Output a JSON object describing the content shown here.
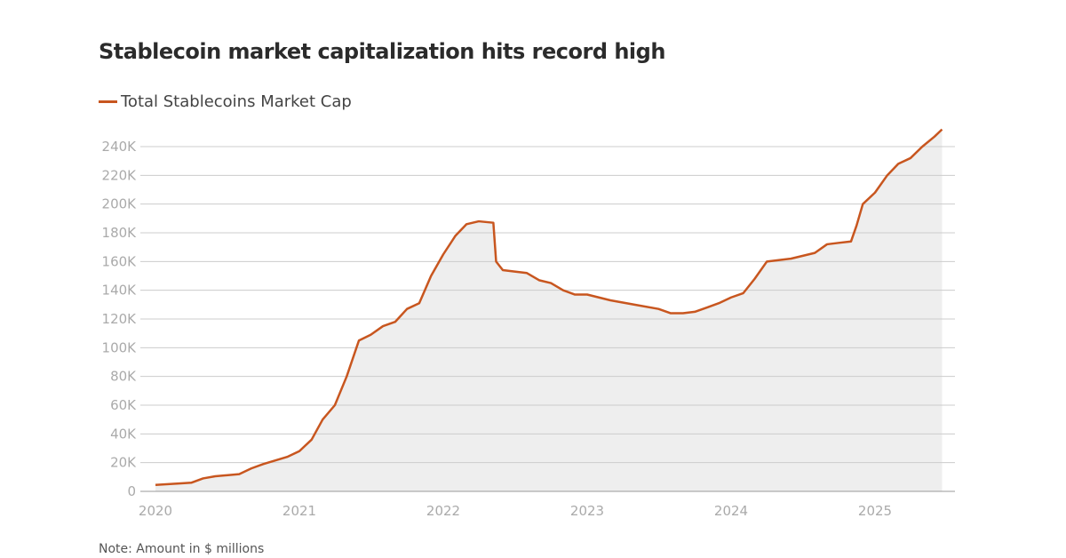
{
  "chart_data": {
    "type": "area",
    "title": "Stablecoin market capitalization hits record high",
    "note": "Note: Amount in $ millions",
    "xlabel": "",
    "ylabel": "",
    "ylim": [
      0,
      240000
    ],
    "y_ticks": [
      "0",
      "20K",
      "40K",
      "60K",
      "80K",
      "100K",
      "120K",
      "140K",
      "160K",
      "180K",
      "200K",
      "220K",
      "240K"
    ],
    "x_ticks": [
      "2020",
      "2021",
      "2022",
      "2023",
      "2024",
      "2025"
    ],
    "grid": true,
    "legend_placement": "top-left",
    "colors": {
      "line": "#c8561f",
      "fill": "#eeeeee",
      "grid": "#cccccc"
    },
    "series": [
      {
        "name": "Total Stablecoins Market Cap",
        "x": [
          "2020-01-01",
          "2020-03-01",
          "2020-04-01",
          "2020-05-01",
          "2020-06-01",
          "2020-08-01",
          "2020-09-01",
          "2020-10-01",
          "2020-12-01",
          "2021-01-01",
          "2021-02-01",
          "2021-03-01",
          "2021-04-01",
          "2021-05-01",
          "2021-06-01",
          "2021-07-01",
          "2021-08-01",
          "2021-09-01",
          "2021-10-01",
          "2021-11-01",
          "2021-12-01",
          "2022-01-01",
          "2022-02-01",
          "2022-03-01",
          "2022-04-01",
          "2022-05-08",
          "2022-05-15",
          "2022-06-01",
          "2022-07-01",
          "2022-08-01",
          "2022-09-01",
          "2022-10-01",
          "2022-11-01",
          "2022-12-01",
          "2023-01-01",
          "2023-03-01",
          "2023-05-01",
          "2023-07-01",
          "2023-08-01",
          "2023-09-01",
          "2023-10-01",
          "2023-11-01",
          "2023-12-01",
          "2024-01-01",
          "2024-02-01",
          "2024-03-01",
          "2024-04-01",
          "2024-05-01",
          "2024-06-01",
          "2024-08-01",
          "2024-09-01",
          "2024-10-01",
          "2024-11-01",
          "2024-11-15",
          "2024-12-01",
          "2025-01-01",
          "2025-02-01",
          "2025-03-01",
          "2025-04-01",
          "2025-05-01",
          "2025-06-01",
          "2025-06-20"
        ],
        "values": [
          4500,
          5500,
          6000,
          9000,
          10500,
          12000,
          16000,
          19000,
          24000,
          28000,
          36000,
          50000,
          60000,
          80000,
          105000,
          109000,
          115000,
          118000,
          127000,
          131000,
          150000,
          165000,
          178000,
          186000,
          188000,
          187000,
          160000,
          154000,
          153000,
          152000,
          147000,
          145000,
          140000,
          137000,
          137000,
          133000,
          130000,
          127000,
          124000,
          124000,
          125000,
          128000,
          131000,
          135000,
          138000,
          148000,
          160000,
          161000,
          162000,
          166000,
          172000,
          173000,
          174000,
          185000,
          200000,
          208000,
          220000,
          228000,
          232000,
          240000,
          247000,
          252000
        ]
      }
    ]
  }
}
